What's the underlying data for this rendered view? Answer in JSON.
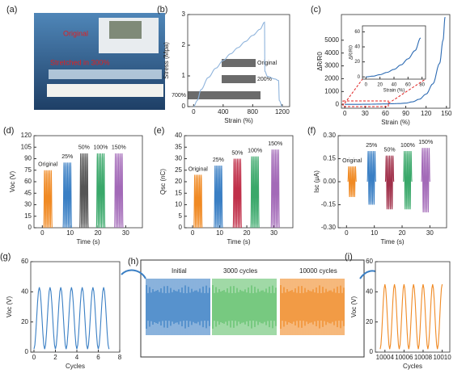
{
  "panel_a": {
    "panel": "(a)",
    "labels": [
      "Original",
      "Stretched in 300%"
    ]
  },
  "panel_h": {
    "panel": "(h)",
    "labels": [
      "Initial",
      "3000 cycles",
      "10000 cycles"
    ]
  },
  "chart_data": [
    {
      "type": "line",
      "panel": "(b)",
      "xlabel": "Strain (%)",
      "ylabel": "Stress (Mpa)",
      "xlim": [
        -80,
        1300
      ],
      "ylim": [
        0,
        3
      ],
      "xticks": [
        0,
        400,
        800,
        1200
      ],
      "yticks": [
        0,
        1,
        2,
        3
      ],
      "annotations": [
        "Original",
        "200%",
        "700%"
      ],
      "x": [
        0,
        50,
        100,
        200,
        300,
        400,
        500,
        600,
        700,
        800,
        900,
        960,
        965,
        1000,
        1100,
        1150,
        1160,
        1200
      ],
      "series": [
        {
          "color": "#8fb4dc",
          "values": [
            0,
            0.2,
            0.55,
            0.95,
            1.25,
            1.5,
            1.72,
            1.92,
            2.12,
            2.32,
            2.52,
            2.75,
            1.15,
            0.98,
            0.9,
            0.85,
            0.2,
            0
          ]
        }
      ]
    },
    {
      "type": "line",
      "panel": "(c)",
      "xlabel": "Strain (%)",
      "ylabel": "ΔR/R0",
      "xlim": [
        -5,
        155
      ],
      "ylim": [
        -300,
        7000
      ],
      "xticks": [
        0,
        30,
        60,
        90,
        120,
        150
      ],
      "yticks": [
        0,
        1000,
        2000,
        3000,
        4000,
        5000
      ],
      "x": [
        0,
        10,
        20,
        30,
        40,
        50,
        60,
        70,
        80,
        90,
        100,
        110,
        120,
        130,
        140,
        145,
        148
      ],
      "series": [
        {
          "color": "#2d6bb3",
          "values": [
            0,
            2,
            5,
            9,
            15,
            25,
            35,
            50,
            65,
            100,
            200,
            400,
            800,
            1600,
            3200,
            5000,
            6800
          ]
        }
      ]
    },
    {
      "type": "line",
      "xlabel": "Strain (%)",
      "ylabel": "ΔR/R0",
      "xlim": [
        -5,
        85
      ],
      "ylim": [
        -3,
        68
      ],
      "xticks": [
        0,
        20,
        40,
        60,
        80
      ],
      "yticks": [
        0,
        20,
        40,
        60
      ],
      "x": [
        0,
        10,
        20,
        30,
        40,
        50,
        60,
        70,
        78
      ],
      "series": [
        {
          "color": "#2d6bb3",
          "values": [
            0,
            1,
            3,
            6,
            10,
            16,
            24,
            35,
            52
          ]
        }
      ]
    },
    {
      "type": "line",
      "panel": "(d)",
      "xlabel": "Time (s)",
      "ylabel": "Voc (V)",
      "xlim": [
        -3,
        36
      ],
      "ylim": [
        0,
        120
      ],
      "xticks": [
        0,
        10,
        20,
        30
      ],
      "yticks": [
        0,
        15,
        30,
        45,
        60,
        75,
        90,
        105,
        120
      ],
      "series": [
        {
          "name": "Original",
          "color": "#f08a24",
          "x": [
            0.5,
            0.8,
            1.1,
            1.4,
            1.7,
            2.0,
            2.3,
            2.6,
            2.9,
            3.2,
            3.5
          ],
          "values": [
            0,
            75,
            0,
            75,
            0,
            75,
            0,
            75,
            0,
            75,
            0
          ]
        },
        {
          "name": "25%",
          "color": "#3a7fc4",
          "x": [
            7.5,
            7.8,
            8.1,
            8.4,
            8.7,
            9.0,
            9.3,
            9.6,
            9.9,
            10.2,
            10.5
          ],
          "values": [
            0,
            85,
            0,
            85,
            0,
            85,
            0,
            85,
            0,
            85,
            0
          ]
        },
        {
          "name": "50%",
          "color": "#555555",
          "x": [
            13.5,
            13.8,
            14.1,
            14.4,
            14.7,
            15.0,
            15.3,
            15.6,
            15.9,
            16.2,
            16.5
          ],
          "values": [
            0,
            97,
            0,
            97,
            0,
            97,
            0,
            97,
            0,
            97,
            0
          ]
        },
        {
          "name": "100%",
          "color": "#3aa86a",
          "x": [
            19.5,
            19.8,
            20.1,
            20.4,
            20.7,
            21.0,
            21.3,
            21.6,
            21.9,
            22.2,
            22.5
          ],
          "values": [
            0,
            97,
            0,
            97,
            0,
            97,
            0,
            97,
            0,
            97,
            0
          ]
        },
        {
          "name": "150%",
          "color": "#a36ab8",
          "x": [
            26.0,
            26.3,
            26.6,
            26.9,
            27.2,
            27.5,
            27.8,
            28.1,
            28.4,
            28.7,
            29.0
          ],
          "values": [
            0,
            97,
            0,
            97,
            0,
            97,
            0,
            97,
            0,
            97,
            0
          ]
        }
      ]
    },
    {
      "type": "line",
      "panel": "(e)",
      "xlabel": "Time (s)",
      "ylabel": "Qsc (nC)",
      "xlim": [
        -3,
        37
      ],
      "ylim": [
        0,
        40
      ],
      "xticks": [
        0,
        10,
        20,
        30
      ],
      "yticks": [
        0,
        5,
        10,
        15,
        20,
        25,
        30,
        35,
        40
      ],
      "series": [
        {
          "name": "Original",
          "color": "#f08a24",
          "x": [
            0.5,
            0.8,
            1.1,
            1.4,
            1.7,
            2.0,
            2.3,
            2.6,
            2.9,
            3.2,
            3.5
          ],
          "values": [
            0,
            23,
            0,
            23,
            0,
            23,
            0,
            23,
            0,
            23,
            0
          ]
        },
        {
          "name": "25%",
          "color": "#3a7fc4",
          "x": [
            8.0,
            8.3,
            8.6,
            8.9,
            9.2,
            9.5,
            9.8,
            10.1,
            10.4,
            10.7,
            11.0
          ],
          "values": [
            0,
            27,
            0,
            27,
            0,
            27,
            0,
            27,
            0,
            27,
            0
          ]
        },
        {
          "name": "50%",
          "color": "#c0304a",
          "x": [
            15.0,
            15.3,
            15.6,
            15.9,
            16.2,
            16.5,
            16.8,
            17.1,
            17.4,
            17.7,
            18.0
          ],
          "values": [
            0,
            30,
            0,
            30,
            0,
            30,
            0,
            30,
            0,
            30,
            0
          ]
        },
        {
          "name": "100%",
          "color": "#3aa86a",
          "x": [
            21.5,
            21.8,
            22.1,
            22.4,
            22.7,
            23.0,
            23.3,
            23.6,
            23.9,
            24.2,
            24.5
          ],
          "values": [
            0,
            31,
            0,
            31,
            0,
            31,
            0,
            31,
            0,
            31,
            0
          ]
        },
        {
          "name": "150%",
          "color": "#a36ab8",
          "x": [
            29.0,
            29.3,
            29.6,
            29.9,
            30.2,
            30.5,
            30.8,
            31.1,
            31.4,
            31.7,
            32.0
          ],
          "values": [
            0,
            34,
            0,
            34,
            0,
            34,
            0,
            34,
            0,
            34,
            0
          ]
        }
      ]
    },
    {
      "type": "line",
      "panel": "(f)",
      "xlabel": "Time (s)",
      "ylabel": "Isc (μA)",
      "xlim": [
        -3,
        36
      ],
      "ylim": [
        -0.3,
        0.3
      ],
      "xticks": [
        0,
        10,
        20,
        30
      ],
      "yticks": [
        {
          "value": -0.3,
          "label": "-0.30"
        },
        {
          "value": -0.15,
          "label": "-0.15"
        },
        {
          "value": 0,
          "label": "0.00"
        },
        {
          "value": 0.15,
          "label": "0.15"
        },
        {
          "value": 0.3,
          "label": "0.30"
        }
      ],
      "series": [
        {
          "name": "Original",
          "color": "#f08a24",
          "x": [
            0.5,
            0.8,
            1.1,
            1.4,
            1.7,
            2.0,
            2.3,
            2.6,
            2.9,
            3.2,
            3.5
          ],
          "values": [
            0,
            0.1,
            -0.1,
            0.1,
            -0.1,
            0.1,
            -0.1,
            0.1,
            -0.1,
            0.1,
            0
          ]
        },
        {
          "name": "25%",
          "color": "#3a7fc4",
          "x": [
            7.5,
            7.8,
            8.1,
            8.4,
            8.7,
            9.0,
            9.3,
            9.6,
            9.9,
            10.2,
            10.5
          ],
          "values": [
            0,
            0.2,
            -0.15,
            0.2,
            -0.15,
            0.2,
            -0.15,
            0.2,
            -0.15,
            0.2,
            0
          ]
        },
        {
          "name": "50%",
          "color": "#a0304a",
          "x": [
            14.0,
            14.3,
            14.6,
            14.9,
            15.2,
            15.5,
            15.8,
            16.1,
            16.4,
            16.7,
            17.0
          ],
          "values": [
            0,
            0.17,
            -0.18,
            0.17,
            -0.18,
            0.17,
            -0.18,
            0.17,
            -0.18,
            0.17,
            0
          ]
        },
        {
          "name": "100%",
          "color": "#3aa86a",
          "x": [
            20.5,
            20.8,
            21.1,
            21.4,
            21.7,
            22.0,
            22.3,
            22.6,
            22.9,
            23.2,
            23.5
          ],
          "values": [
            0,
            0.2,
            -0.18,
            0.2,
            -0.18,
            0.2,
            -0.18,
            0.2,
            -0.18,
            0.2,
            0
          ]
        },
        {
          "name": "150%",
          "color": "#a36ab8",
          "x": [
            27.0,
            27.3,
            27.6,
            27.9,
            28.2,
            28.5,
            28.8,
            29.1,
            29.4,
            29.7,
            30.0
          ],
          "values": [
            0,
            0.22,
            -0.2,
            0.22,
            -0.2,
            0.22,
            -0.2,
            0.22,
            -0.2,
            0.22,
            0
          ]
        }
      ]
    },
    {
      "type": "line",
      "panel": "(g)",
      "xlabel": "Cycles",
      "ylabel": "Voc (V)",
      "xlim": [
        -0.3,
        8
      ],
      "ylim": [
        0,
        60
      ],
      "xticks": [
        0,
        2,
        4,
        6,
        8
      ],
      "yticks": [
        0,
        20,
        40,
        60
      ],
      "x": [
        0,
        0.5,
        1,
        1.5,
        2,
        2.5,
        3,
        3.5,
        4,
        4.5,
        5,
        5.5,
        6,
        6.5,
        7
      ],
      "series": [
        {
          "color": "#3a7fc4",
          "values": [
            2,
            43,
            2,
            43,
            2,
            43,
            2,
            43,
            2,
            43,
            2,
            43,
            2,
            43,
            2
          ]
        }
      ]
    },
    {
      "type": "line",
      "panel": "(i)",
      "xlabel": "Cycles",
      "ylabel": "Voc (V)",
      "xlim": [
        10003,
        10010.8
      ],
      "ylim": [
        0,
        60
      ],
      "xticks": [
        10004,
        10006,
        10008,
        10010
      ],
      "yticks": [
        0,
        20,
        40,
        60
      ],
      "x": [
        10003.5,
        10004,
        10004.5,
        10005,
        10005.5,
        10006,
        10006.5,
        10007,
        10007.5,
        10008,
        10008.5,
        10009,
        10009.5,
        10010
      ],
      "series": [
        {
          "color": "#f08a24",
          "values": [
            2,
            45,
            2,
            45,
            2,
            45,
            2,
            45,
            2,
            45,
            2,
            45,
            2,
            45
          ]
        }
      ]
    }
  ]
}
